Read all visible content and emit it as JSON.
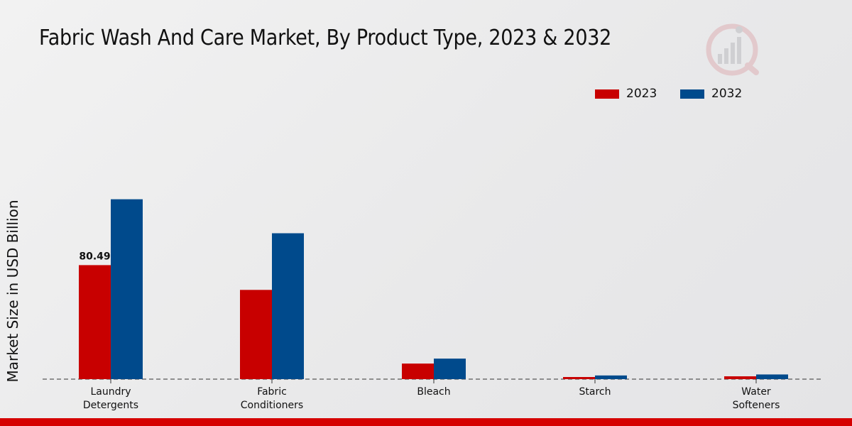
{
  "title": "Fabric Wash And Care Market, By Product Type, 2023 & 2032",
  "colors": {
    "2023": "#c80000",
    "2032": "#004a8c",
    "accent_bar": "#d50000"
  },
  "logo_icon": "bar-chart-watermark-icon",
  "chart_data": {
    "type": "bar",
    "title": "Fabric Wash And Care Market, By Product Type, 2023 & 2032",
    "xlabel": "",
    "ylabel": "Market Size in USD Billion",
    "categories": [
      [
        "Laundry",
        "Detergents"
      ],
      [
        "Fabric",
        "Conditioners"
      ],
      [
        "Bleach"
      ],
      [
        "Starch"
      ],
      [
        "Water",
        "Softeners"
      ]
    ],
    "series": [
      {
        "name": "2023",
        "color": "#c80000",
        "values": [
          80.49,
          63.0,
          11.0,
          1.5,
          2.0
        ]
      },
      {
        "name": "2032",
        "color": "#004a8c",
        "values": [
          127.0,
          103.0,
          14.5,
          2.6,
          3.3
        ]
      }
    ],
    "data_labels": [
      {
        "series": 0,
        "index": 0,
        "text": "80.49"
      }
    ],
    "ylim": [
      0,
      200
    ],
    "grid": false,
    "legend_position": "top-right"
  }
}
